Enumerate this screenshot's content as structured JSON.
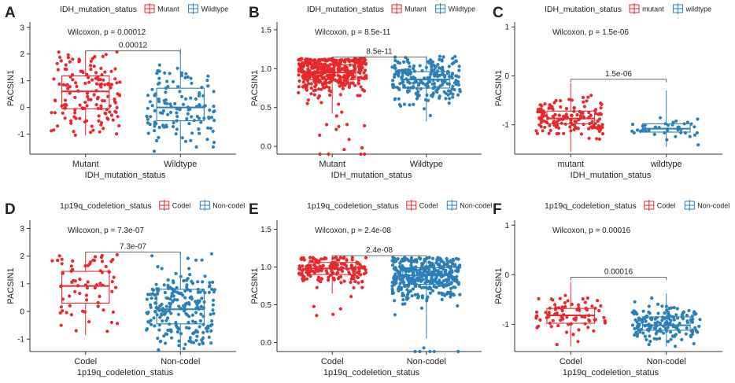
{
  "colors": {
    "group1": "#E8282B",
    "group2": "#2A7FB8",
    "axis": "#333333",
    "text": "#222222"
  },
  "chart_data": [
    {
      "type": "boxplot",
      "panel": "A",
      "legend_title": "IDH_mutation_status",
      "categories": [
        "Mutant",
        "Wildtype"
      ],
      "xlabel": "IDH_mutation_status",
      "ylabel": "PACSIN1",
      "ylim": [
        -1.75,
        3.2
      ],
      "yticks": [
        -1,
        0,
        1,
        2,
        3
      ],
      "test_label": "Wilcoxon, p = 0.00012",
      "pvalue_label": "0.00012",
      "bracket_y": 2.12,
      "boxes": [
        {
          "q1": -0.05,
          "median": 0.6,
          "q3": 1.18,
          "lw": -1.05,
          "uw": 2.1,
          "n": 150,
          "tail": 0
        },
        {
          "q1": -0.5,
          "median": 0.0,
          "q3": 0.72,
          "lw": -1.65,
          "uw": 2.2,
          "n": 130,
          "tail": 0
        }
      ]
    },
    {
      "type": "boxplot",
      "panel": "B",
      "legend_title": "IDH_mutation_status",
      "categories": [
        "Mutant",
        "Wildtype"
      ],
      "xlabel": "IDH_mutation_status",
      "ylabel": "PACSIN1",
      "ylim": [
        -0.1,
        1.6
      ],
      "yticks": [
        0.0,
        0.5,
        1.0,
        1.5
      ],
      "test_label": "Wilcoxon, p = 8.5e-11",
      "pvalue_label": "8.5e-11",
      "bracket_y": 1.15,
      "boxes": [
        {
          "q1": 0.86,
          "median": 0.95,
          "q3": 1.05,
          "lw": 0.42,
          "uw": 1.13,
          "n": 420,
          "tail": 14
        },
        {
          "q1": 0.75,
          "median": 0.86,
          "q3": 0.96,
          "lw": 0.32,
          "uw": 1.16,
          "n": 230,
          "tail": 0
        }
      ]
    },
    {
      "type": "boxplot",
      "panel": "C",
      "legend_title": "IDH_mutation_status",
      "categories": [
        "mutant",
        "wildtype"
      ],
      "xlabel": "IDH_mutation_status",
      "ylabel": "PACSIN1",
      "ylim": [
        -1.6,
        1.1
      ],
      "yticks": [
        -1,
        0,
        1
      ],
      "test_label": "Wilcoxon, p = 1.5e-06",
      "pvalue_label": "1.5e-06",
      "bracket_y": -0.07,
      "boxes": [
        {
          "q1": -0.98,
          "median": -0.87,
          "q3": -0.72,
          "lw": -1.55,
          "uw": -0.15,
          "n": 150,
          "tail": 0
        },
        {
          "q1": -1.15,
          "median": -1.08,
          "q3": -0.98,
          "lw": -1.45,
          "uw": -0.3,
          "n": 40,
          "tail": 0
        }
      ]
    },
    {
      "type": "boxplot",
      "panel": "D",
      "legend_title": "1p19q_codeletion_status",
      "categories": [
        "Codel",
        "Non-codel"
      ],
      "xlabel": "1p19q_codeletion_status",
      "ylabel": "PACSIN1",
      "ylim": [
        -1.45,
        3.3
      ],
      "yticks": [
        -1,
        0,
        1,
        2,
        3
      ],
      "test_label": "Wilcoxon, p = 7.3e-07",
      "pvalue_label": "7.3e-07",
      "bracket_y": 2.15,
      "boxes": [
        {
          "q1": 0.3,
          "median": 0.92,
          "q3": 1.45,
          "lw": -0.85,
          "uw": 2.05,
          "n": 70,
          "tail": 0
        },
        {
          "q1": -0.45,
          "median": 0.08,
          "q3": 0.8,
          "lw": -1.4,
          "uw": 2.15,
          "n": 230,
          "tail": 0
        }
      ]
    },
    {
      "type": "boxplot",
      "panel": "E",
      "legend_title": "1p19q_codeletion_status",
      "categories": [
        "Codel",
        "Non-codel"
      ],
      "xlabel": "1p19q_codeletion_status",
      "ylabel": "PACSIN1",
      "ylim": [
        -0.12,
        1.62
      ],
      "yticks": [
        0.0,
        0.5,
        1.0,
        1.5
      ],
      "test_label": "Wilcoxon, p = 2.4e-08",
      "pvalue_label": "2.4e-08",
      "bracket_y": 1.15,
      "boxes": [
        {
          "q1": 0.9,
          "median": 0.98,
          "q3": 1.06,
          "lw": 0.65,
          "uw": 1.13,
          "n": 190,
          "tail": 5
        },
        {
          "q1": 0.77,
          "median": 0.89,
          "q3": 0.99,
          "lw": 0.05,
          "uw": 1.13,
          "n": 420,
          "tail": 6
        }
      ]
    },
    {
      "type": "boxplot",
      "panel": "F",
      "legend_title": "1p19q_codeletion_status",
      "categories": [
        "Codel",
        "Non-codel"
      ],
      "xlabel": "1p19q_codeletion_status",
      "ylabel": "PACSIN1",
      "ylim": [
        -1.55,
        1.1
      ],
      "yticks": [
        -1,
        0,
        1
      ],
      "test_label": "Wilcoxon, p = 0.00016",
      "pvalue_label": "0.00016",
      "bracket_y": -0.05,
      "boxes": [
        {
          "q1": -0.98,
          "median": -0.82,
          "q3": -0.68,
          "lw": -1.45,
          "uw": -0.15,
          "n": 80,
          "tail": 0
        },
        {
          "q1": -1.12,
          "median": -1.02,
          "q3": -0.85,
          "lw": -1.45,
          "uw": -0.38,
          "n": 170,
          "tail": 0
        }
      ]
    }
  ]
}
